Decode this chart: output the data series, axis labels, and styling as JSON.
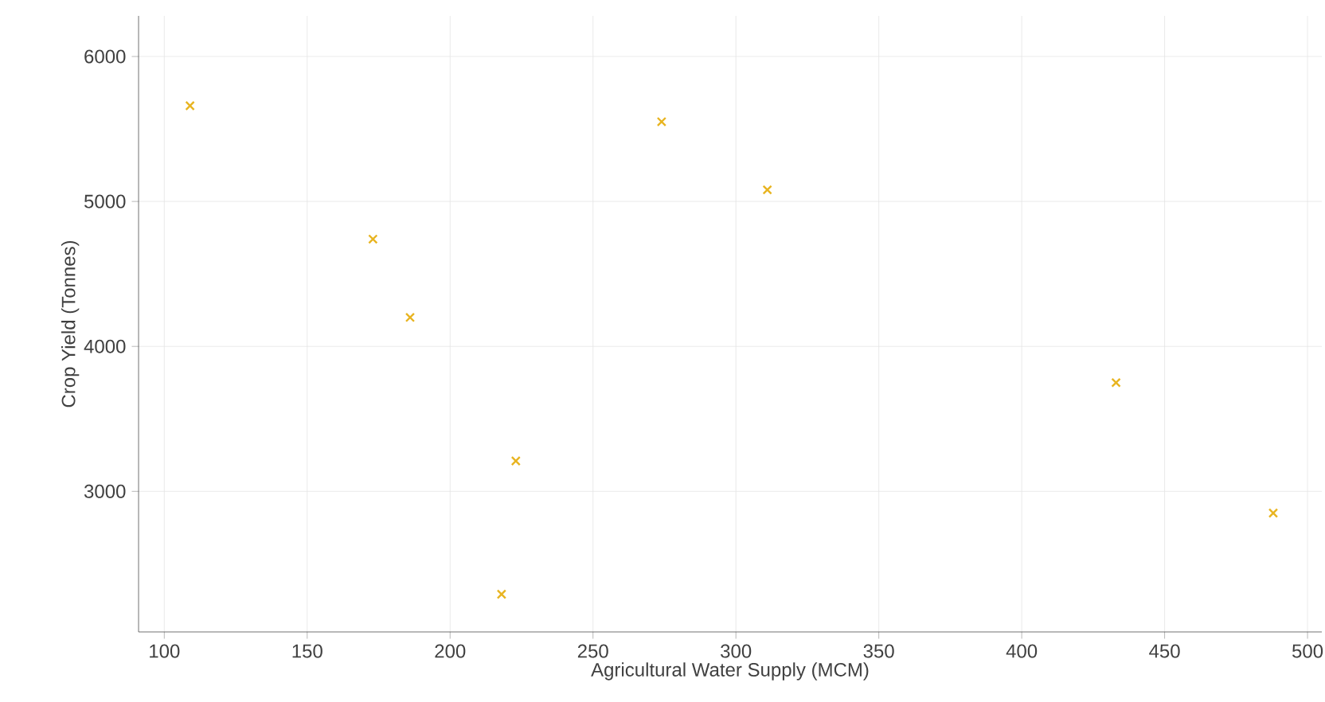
{
  "chart_data": {
    "type": "scatter",
    "xlabel": "Agricultural Water Supply (MCM)",
    "ylabel": "Crop Yield (Tonnes)",
    "x": [
      109,
      173,
      186,
      223,
      218,
      274,
      311,
      433,
      488
    ],
    "series": [
      {
        "color": "#e8b420",
        "values": [
          5660,
          4740,
          4200,
          3210,
          2290,
          5550,
          5080,
          3750,
          2850
        ]
      }
    ],
    "xlim": [
      91,
      505
    ],
    "ylim": [
      2030,
      6280
    ],
    "xticks": [
      100,
      150,
      200,
      250,
      300,
      350,
      400,
      450,
      500
    ],
    "yticks": [
      3000,
      4000,
      5000,
      6000
    ],
    "grid": true,
    "marker": "cross"
  }
}
